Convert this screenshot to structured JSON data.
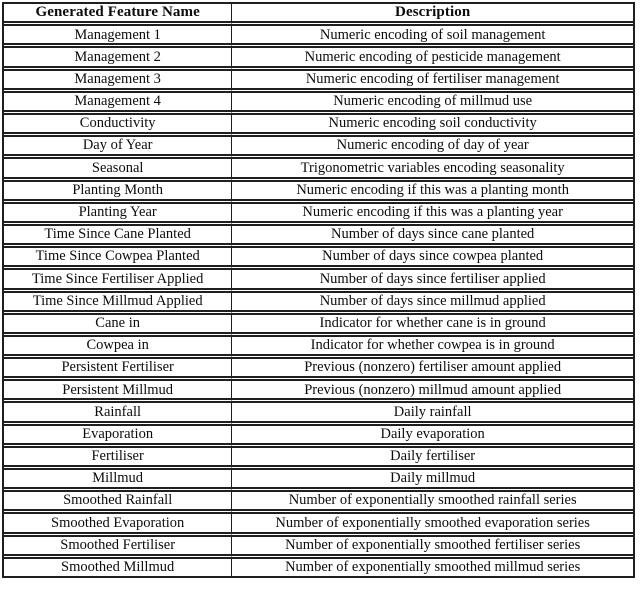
{
  "colors": {
    "background": "#ffffff",
    "border": "#1f1f1f",
    "text": "#0c0c0c"
  },
  "table": {
    "headers": [
      "Generated Feature Name",
      "Description"
    ],
    "rows": [
      {
        "feature": "Management 1",
        "description": "Numeric encoding of soil management"
      },
      {
        "feature": "Management 2",
        "description": "Numeric encoding of pesticide management"
      },
      {
        "feature": "Management 3",
        "description": "Numeric encoding of fertiliser management"
      },
      {
        "feature": "Management 4",
        "description": "Numeric encoding of millmud use"
      },
      {
        "feature": "Conductivity",
        "description": "Numeric encoding soil conductivity"
      },
      {
        "feature": "Day of Year",
        "description": "Numeric encoding of day of year"
      },
      {
        "feature": "Seasonal",
        "description": "Trigonometric variables encoding seasonality"
      },
      {
        "feature": "Planting Month",
        "description": "Numeric encoding if this was a planting month"
      },
      {
        "feature": "Planting Year",
        "description": "Numeric encoding if this was a planting year"
      },
      {
        "feature": "Time Since Cane Planted",
        "description": "Number of days since cane planted"
      },
      {
        "feature": "Time Since Cowpea Planted",
        "description": "Number of days since cowpea planted"
      },
      {
        "feature": "Time Since Fertiliser Applied",
        "description": "Number of days since fertiliser applied"
      },
      {
        "feature": "Time Since Millmud Applied",
        "description": "Number of days since millmud applied"
      },
      {
        "feature": "Cane in",
        "description": "Indicator for whether cane is in ground"
      },
      {
        "feature": "Cowpea in",
        "description": "Indicator for whether cowpea is in ground"
      },
      {
        "feature": "Persistent Fertiliser",
        "description": "Previous (nonzero) fertiliser amount applied"
      },
      {
        "feature": "Persistent Millmud",
        "description": "Previous (nonzero) millmud amount applied"
      },
      {
        "feature": "Rainfall",
        "description": "Daily rainfall"
      },
      {
        "feature": "Evaporation",
        "description": "Daily evaporation"
      },
      {
        "feature": "Fertiliser",
        "description": "Daily fertiliser"
      },
      {
        "feature": "Millmud",
        "description": "Daily millmud"
      },
      {
        "feature": "Smoothed Rainfall",
        "description": "Number of exponentially smoothed rainfall series"
      },
      {
        "feature": "Smoothed Evaporation",
        "description": "Number of exponentially smoothed evaporation series"
      },
      {
        "feature": "Smoothed Fertiliser",
        "description": "Number of exponentially smoothed fertiliser series"
      },
      {
        "feature": "Smoothed Millmud",
        "description": "Number of exponentially smoothed millmud series"
      }
    ]
  }
}
